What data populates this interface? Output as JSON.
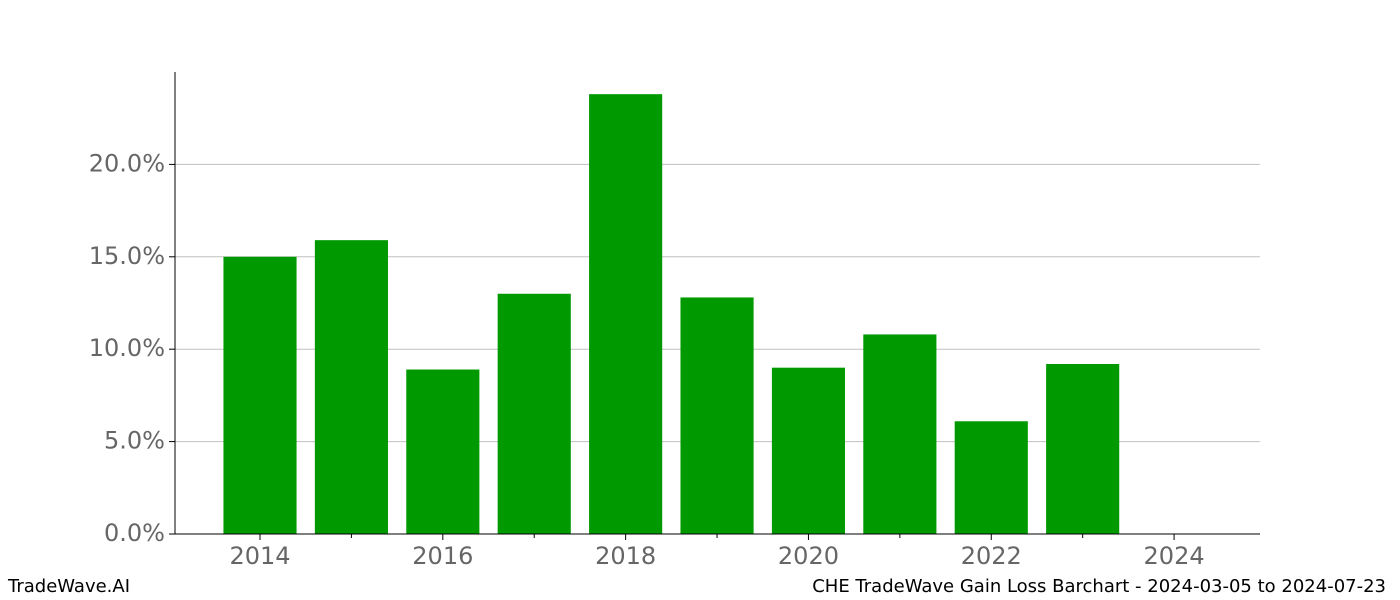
{
  "chart_data": {
    "type": "bar",
    "title": "CHE TradeWave Gain Loss Barchart - 2024-03-05 to 2024-07-23",
    "source": "TradeWave.AI",
    "x": [
      2014,
      2015,
      2016,
      2017,
      2018,
      2019,
      2020,
      2021,
      2022,
      2023
    ],
    "values": [
      15.0,
      15.9,
      8.9,
      13.0,
      23.8,
      12.8,
      9.0,
      10.8,
      6.1,
      9.2
    ],
    "color": "#009900",
    "xlim": [
      2013.07,
      2024.94
    ],
    "xticks": [
      2014,
      2016,
      2018,
      2020,
      2022,
      2024
    ],
    "xminorticks": [
      2015,
      2017,
      2019,
      2021,
      2023
    ],
    "ylim": [
      0,
      25
    ],
    "yticks": [
      {
        "value": 0,
        "label": "0.0%"
      },
      {
        "value": 5,
        "label": "5.0%"
      },
      {
        "value": 10,
        "label": "10.0%"
      },
      {
        "value": 15,
        "label": "15.0%"
      },
      {
        "value": 20,
        "label": "20.0%"
      }
    ],
    "grid": true
  }
}
